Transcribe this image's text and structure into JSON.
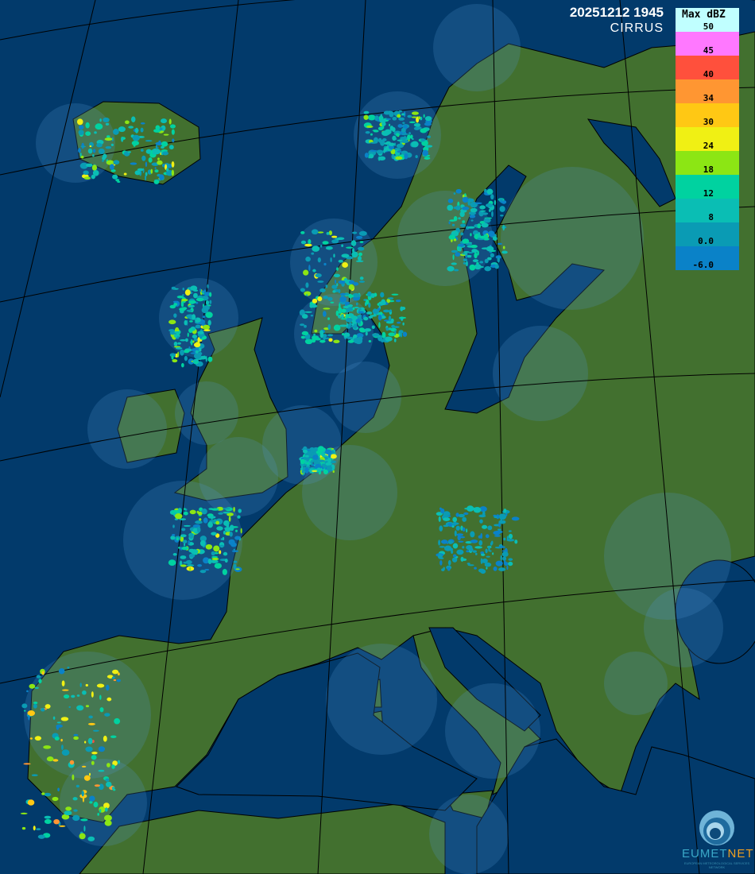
{
  "header": {
    "timestamp": "20251212 1945",
    "product": "CIRRUS"
  },
  "legend": {
    "title": "Max dBZ",
    "levels": [
      {
        "label": "50",
        "color": "#c0ffff"
      },
      {
        "label": "45",
        "color": "#ff78ff"
      },
      {
        "label": "40",
        "color": "#ff503c"
      },
      {
        "label": "34",
        "color": "#ff9632"
      },
      {
        "label": "30",
        "color": "#ffc814"
      },
      {
        "label": "24",
        "color": "#f0f014"
      },
      {
        "label": "18",
        "color": "#8ce614"
      },
      {
        "label": "12",
        "color": "#00d2a0"
      },
      {
        "label": "8",
        "color": "#0abeb4"
      },
      {
        "label": "0.0",
        "color": "#0a9bb4"
      },
      {
        "label": "-6.0",
        "color": "#0a82c8"
      }
    ]
  },
  "map": {
    "sea_color": "#023a6b",
    "land_color": "#42702f",
    "coverage_land_color": "#4d8338",
    "coverage_sea_color": "#05508d"
  },
  "logo": {
    "name_a": "EUMET",
    "name_b": "NET",
    "tagline": "EUROPEAN METEOROLOGICAL SERVICES NETWORK"
  }
}
